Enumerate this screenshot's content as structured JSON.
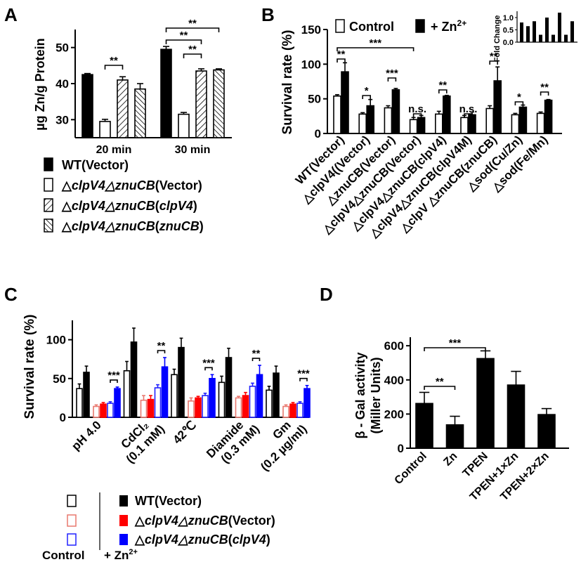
{
  "panels": {
    "A": "A",
    "B": "B",
    "C": "C",
    "D": "D"
  },
  "colors": {
    "black": "#000000",
    "white": "#ffffff",
    "red": "#ff0000",
    "blue": "#0000ff",
    "red_outline": "#e8786e",
    "blue_outline": "#2222ff"
  },
  "legendA": [
    {
      "label_plain": "WT(Vector)"
    },
    {
      "label_prefix": "△",
      "label_italic": "clpV4△znuCB",
      "label_suffix": "(Vector)"
    },
    {
      "label_prefix": "△",
      "label_italic": "clpV4△znuCB",
      "label_suffix": "(",
      "label_italic2": "clpV4",
      "label_suffix2": ")"
    },
    {
      "label_prefix": "△",
      "label_italic": "clpV4△znuCB",
      "label_suffix": "(",
      "label_italic2": "znuCB",
      "label_suffix2": ")"
    }
  ],
  "legendB": {
    "control": "Control",
    "zn": "+ Zn",
    "zn_sup": "2+"
  },
  "legendC": {
    "rows": [
      {
        "label_plain": "WT(Vector)"
      },
      {
        "label_prefix": "△",
        "label_italic": "clpV4△znuCB",
        "label_suffix": "(Vector)"
      },
      {
        "label_prefix": "△",
        "label_italic": "clpV4△znuCB",
        "label_suffix": "(",
        "label_italic2": "clpV4",
        "label_suffix2": ")"
      }
    ],
    "control": "Control",
    "zn": "+ Zn",
    "zn_sup": "2+"
  },
  "chart_data": [
    {
      "panel": "A",
      "type": "bar",
      "ylabel": "µg Zn/g Protein",
      "ylim": [
        25,
        55
      ],
      "yticks": [
        30,
        40,
        50
      ],
      "categories": [
        "20 min",
        "30 min"
      ],
      "series": [
        {
          "name": "WT(Vector)",
          "values": [
            42.5,
            49.5
          ],
          "errors": [
            0.3,
            0.8
          ]
        },
        {
          "name": "△clpV4△znuCB(Vector)",
          "values": [
            29.5,
            31.5
          ],
          "errors": [
            0.6,
            0.5
          ]
        },
        {
          "name": "△clpV4△znuCB(clpV4)",
          "values": [
            41.0,
            43.5
          ],
          "errors": [
            0.9,
            0.6
          ]
        },
        {
          "name": "△clpV4△znuCB(znuCB)",
          "values": [
            38.5,
            43.8
          ],
          "errors": [
            1.5,
            0.3
          ]
        }
      ],
      "significance": [
        "**",
        "**",
        "**",
        "**"
      ]
    },
    {
      "panel": "B",
      "type": "bar",
      "ylabel": "Survival rate (%)",
      "ylim": [
        0,
        150
      ],
      "yticks": [
        0,
        50,
        100,
        150
      ],
      "categories": [
        "WT(Vector)",
        "△clpV4((Vector)",
        "△znuCB(Vector)",
        "△clpV4△znuCB(Vector)",
        "△clpV4△znuCB(clpV4)",
        "△clpV4△znuCB(clpV4M)",
        "△clpV △znuCB(znuCB)",
        "△sod(Cu/Zn)",
        "△sod(Fe/Mn)"
      ],
      "series": [
        {
          "name": "Control",
          "values": [
            54,
            28,
            37,
            20,
            28,
            23,
            36,
            27,
            29
          ],
          "errors": [
            2,
            2,
            3,
            3,
            4,
            3,
            4,
            2,
            2
          ]
        },
        {
          "name": "+ Zn2+",
          "values": [
            89,
            40,
            63,
            23,
            54,
            27,
            76,
            38,
            48
          ],
          "errors": [
            13,
            9,
            2,
            3,
            1,
            4,
            20,
            3,
            1
          ]
        }
      ],
      "significance": [
        "**",
        "***",
        "*",
        "***",
        "n.s.",
        "**",
        "n.s.",
        "**",
        "*",
        "**"
      ],
      "inset": {
        "ylabel": "Fold Change",
        "yticks": [
          0.0,
          0.5,
          1.0
        ],
        "ylim": [
          0,
          1.2
        ],
        "values": [
          0.8,
          0.65,
          0.85,
          0.3,
          1.0,
          0.3,
          1.2,
          0.3,
          0.85
        ]
      }
    },
    {
      "panel": "C",
      "type": "bar",
      "ylabel": "Survival rate (%)",
      "ylim": [
        0,
        125
      ],
      "yticks": [
        0,
        50,
        100
      ],
      "categories": [
        "pH 4.0",
        "CdCl2 (0.1 mM)",
        "42℃",
        "Diamide (0.3 mM)",
        "Gm (0.2 µg/ml)"
      ],
      "category_lines": [
        [
          "pH 4.0"
        ],
        [
          "CdCl₂",
          "(0.1 mM)"
        ],
        [
          "42℃"
        ],
        [
          "Diamide",
          "(0.3 mM)"
        ],
        [
          "Gm",
          "(0.2 µg/ml)"
        ]
      ],
      "series": [
        {
          "name": "WT(Vector) Control",
          "values": [
            37,
            60,
            55,
            45,
            35
          ],
          "errors": [
            6,
            12,
            7,
            8,
            5
          ]
        },
        {
          "name": "WT(Vector) + Zn2+",
          "values": [
            58,
            97,
            90,
            77,
            57
          ],
          "errors": [
            8,
            18,
            12,
            12,
            9
          ]
        },
        {
          "name": "△clpV4△znuCB(Vector) Control",
          "values": [
            14,
            22,
            21,
            25,
            14
          ],
          "errors": [
            2,
            6,
            4,
            2,
            2
          ]
        },
        {
          "name": "△clpV4△znuCB(Vector) + Zn2+",
          "values": [
            17,
            23,
            25,
            28,
            17
          ],
          "errors": [
            2,
            5,
            2,
            4,
            2
          ]
        },
        {
          "name": "△clpV4△znuCB(clpV4) Control",
          "values": [
            18,
            38,
            28,
            40,
            18
          ],
          "errors": [
            2,
            4,
            3,
            4,
            2
          ]
        },
        {
          "name": "△clpV4△znuCB(clpV4) + Zn2+",
          "values": [
            37,
            65,
            50,
            55,
            37
          ],
          "errors": [
            2,
            12,
            5,
            12,
            4
          ]
        }
      ],
      "significance": [
        "***",
        "**",
        "***",
        "**",
        "***"
      ]
    },
    {
      "panel": "D",
      "type": "bar",
      "ylabel": "β - Gal activity",
      "ylabel2": "(Miller Units)",
      "ylim": [
        0,
        650
      ],
      "yticks": [
        0,
        200,
        400,
        600
      ],
      "categories": [
        "Control",
        "Zn",
        "TPEN",
        "TPEN+1×Zn",
        "TPEN+2×Zn"
      ],
      "values": [
        262,
        137,
        525,
        370,
        197
      ],
      "errors": [
        65,
        50,
        45,
        80,
        35
      ],
      "significance": [
        "***",
        "**"
      ]
    }
  ]
}
